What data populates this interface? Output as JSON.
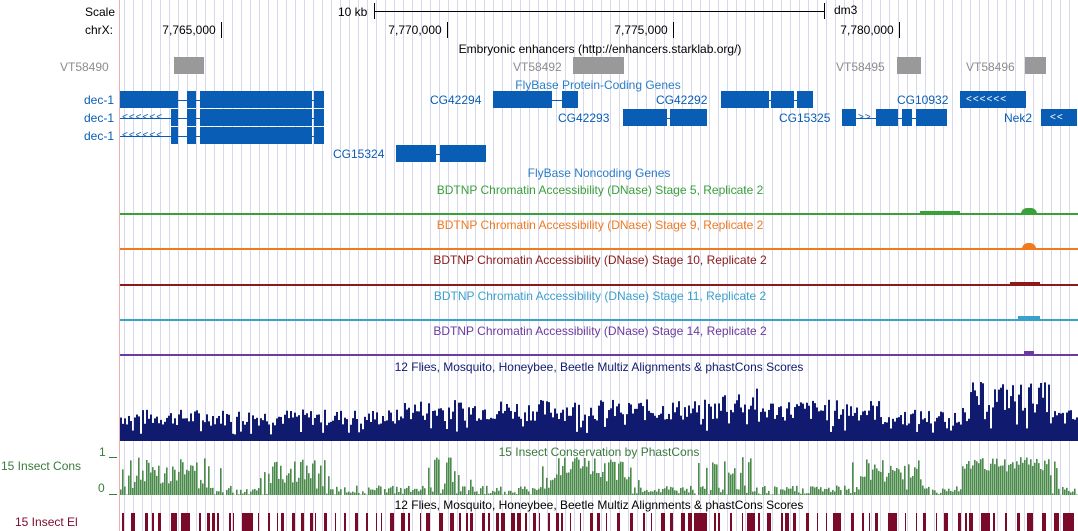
{
  "ruler": {
    "scale_label": "Scale",
    "chrom_label": "chrX:",
    "scale_bar_label": "10 kb",
    "assembly": "dm3",
    "ticks": [
      "7,765,000",
      "7,770,000",
      "7,775,000",
      "7,780,000"
    ]
  },
  "tracks": {
    "enhancers": {
      "title": "Embryonic enhancers (http://enhancers.starklab.org/)",
      "items": [
        "VT58490",
        "VT58492",
        "VT58495",
        "VT58496"
      ]
    },
    "protein_coding": {
      "title": "FlyBase Protein-Coding Genes",
      "left_labels": [
        "dec-1",
        "dec-1",
        "dec-1"
      ],
      "genes": [
        "CG42294",
        "CG42292",
        "CG10932",
        "CG42293",
        "CG15325",
        "Nek2",
        "CG15324"
      ]
    },
    "noncoding": {
      "title": "FlyBase Noncoding Genes"
    },
    "dnase": [
      {
        "title": "BDTNP Chromatin Accessibility (DNase) Stage 5, Replicate 2",
        "color": "#3aa03a"
      },
      {
        "title": "BDTNP Chromatin Accessibility (DNase) Stage 9, Replicate 2",
        "color": "#f07a20"
      },
      {
        "title": "BDTNP Chromatin Accessibility (DNase) Stage 10, Replicate 2",
        "color": "#8b1a1a"
      },
      {
        "title": "BDTNP Chromatin Accessibility (DNase) Stage 11, Replicate 2",
        "color": "#3aa0cc"
      },
      {
        "title": "BDTNP Chromatin Accessibility (DNase) Stage 14, Replicate 2",
        "color": "#6a3aa0"
      }
    ],
    "multiz": {
      "title": "12 Flies, Mosquito, Honeybee, Beetle Multiz Alignments & phastCons Scores",
      "color": "#101a6e"
    },
    "phastcons": {
      "title": "15 Insect Conservation by PhastCons",
      "left_label": "15 Insect Cons",
      "y_max": "1",
      "y_min": "0",
      "color": "#3a7a3a"
    },
    "elements": {
      "title": "12 Flies, Mosquito, Honeybee, Beetle Multiz Alignments & phastCons Scores",
      "left_label": "15 Insect El",
      "color": "#7a0a2a"
    }
  },
  "colors": {
    "gene": "#0a5db5",
    "enhancer": "#999999",
    "enhancer_label": "#8c8c8c",
    "ruler": "#000000",
    "grid": "#d8d8ec",
    "left_border": "#f0b0b0"
  }
}
